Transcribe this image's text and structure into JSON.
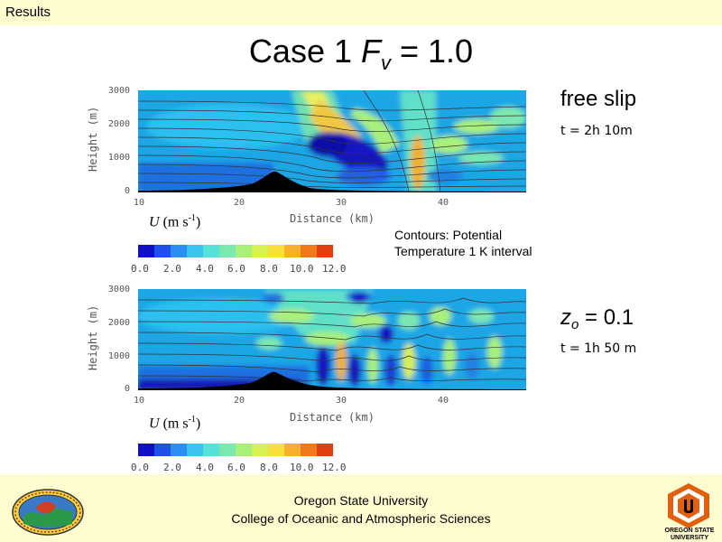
{
  "header": {
    "label": "Results"
  },
  "title": {
    "prefix": "Case 1 ",
    "symbol": "F",
    "subscript": "v",
    "suffix": " = 1.0"
  },
  "panels": [
    {
      "y_ticks": [
        "3000",
        "2000",
        "1000",
        "0"
      ],
      "x_ticks": [
        "10",
        "20",
        "30",
        "40"
      ],
      "y_label": "Height (m)",
      "x_label": "Distance (km)",
      "u_label": {
        "symbol": "U",
        "units": "(m s",
        "exp": "-1",
        "close": ")"
      },
      "colorbar_ticks": [
        "0.0",
        "2.0",
        "4.0",
        "6.0",
        "8.0",
        "10.0",
        "12.0"
      ],
      "side_title": "free slip",
      "side_time": "t = 2h 10m"
    },
    {
      "y_ticks": [
        "3000",
        "2000",
        "1000",
        "0"
      ],
      "x_ticks": [
        "10",
        "20",
        "30",
        "40"
      ],
      "y_label": "Height (m)",
      "x_label": "Distance (km)",
      "u_label": {
        "symbol": "U",
        "units": "(m s",
        "exp": "-1",
        "close": ")"
      },
      "colorbar_ticks": [
        "0.0",
        "2.0",
        "4.0",
        "6.0",
        "8.0",
        "10.0",
        "12.0"
      ],
      "side_title_symbol": "z",
      "side_title_subscript": "o",
      "side_title_value": " = 0.1",
      "side_time": "t = 1h 50 m"
    }
  ],
  "contours_note": {
    "line1": "Contours: Potential",
    "line2": "Temperature 1 K interval"
  },
  "footer": {
    "line1": "Oregon State University",
    "line2": "College of Oceanic and Atmospheric Sciences"
  },
  "colorbar_colors": [
    "#1010c8",
    "#1f50e8",
    "#2b8ff2",
    "#3bc3f0",
    "#55e0d8",
    "#7be8b0",
    "#a8f07a",
    "#d8f050",
    "#f7e03a",
    "#f7b02a",
    "#f07a1a",
    "#e04010"
  ],
  "colors": {
    "panel_bg": "#fffccf",
    "osu_orange": "#e06010"
  }
}
